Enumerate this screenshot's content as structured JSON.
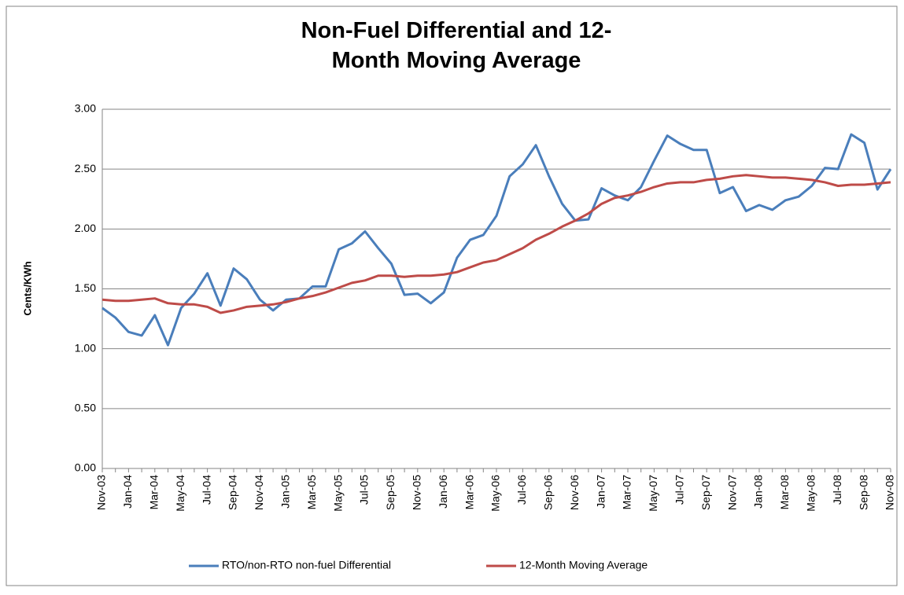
{
  "chart_data": {
    "type": "line",
    "title": "Non-Fuel Differential and 12-Month Moving Average",
    "y_label": "Cents/KWh",
    "categories": [
      "Nov-03",
      null,
      "Jan-04",
      null,
      "Mar-04",
      null,
      "May-04",
      null,
      "Jul-04",
      null,
      "Sep-04",
      null,
      "Nov-04",
      null,
      "Jan-05",
      null,
      "Mar-05",
      null,
      "May-05",
      null,
      "Jul-05",
      null,
      "Sep-05",
      null,
      "Nov-05",
      null,
      "Jan-06",
      null,
      "Mar-06",
      null,
      "May-06",
      null,
      "Jul-06",
      null,
      "Sep-06",
      null,
      "Nov-06",
      null,
      "Jan-07",
      null,
      "Mar-07",
      null,
      "May-07",
      null,
      "Jul-07",
      null,
      "Sep-07",
      null,
      "Nov-07",
      null,
      "Jan-08",
      null,
      "Mar-08",
      null,
      "May-08",
      null,
      "Jul-08",
      null,
      "Sep-08",
      null,
      "Nov-08"
    ],
    "series": [
      {
        "name": "RTO/non-RTO non-fuel Differential",
        "color": "#4a7ebb",
        "values": [
          1.34,
          1.26,
          1.14,
          1.11,
          1.28,
          1.03,
          1.34,
          1.46,
          1.63,
          1.36,
          1.67,
          1.58,
          1.41,
          1.32,
          1.41,
          1.42,
          1.52,
          1.52,
          1.83,
          1.88,
          1.98,
          1.84,
          1.71,
          1.45,
          1.46,
          1.38,
          1.47,
          1.76,
          1.91,
          1.95,
          2.11,
          2.44,
          2.54,
          2.7,
          2.44,
          2.21,
          2.07,
          2.08,
          2.34,
          2.28,
          2.24,
          2.35,
          2.57,
          2.78,
          2.71,
          2.66,
          2.66,
          2.3,
          2.35,
          2.15,
          2.2,
          2.16,
          2.24,
          2.27,
          2.36,
          2.51,
          2.5,
          2.79,
          2.72,
          2.33,
          2.5
        ]
      },
      {
        "name": "12-Month Moving Average",
        "color": "#be4b48",
        "values": [
          1.41,
          1.4,
          1.4,
          1.41,
          1.42,
          1.38,
          1.37,
          1.37,
          1.35,
          1.3,
          1.32,
          1.35,
          1.36,
          1.37,
          1.39,
          1.42,
          1.44,
          1.47,
          1.51,
          1.55,
          1.57,
          1.61,
          1.61,
          1.6,
          1.61,
          1.61,
          1.62,
          1.64,
          1.68,
          1.72,
          1.74,
          1.79,
          1.84,
          1.91,
          1.96,
          2.02,
          2.07,
          2.13,
          2.21,
          2.26,
          2.28,
          2.31,
          2.35,
          2.38,
          2.39,
          2.39,
          2.41,
          2.42,
          2.44,
          2.45,
          2.44,
          2.43,
          2.43,
          2.42,
          2.41,
          2.39,
          2.36,
          2.37,
          2.37,
          2.38,
          2.39
        ]
      }
    ],
    "ylim": [
      0,
      3
    ],
    "yticks": [
      {
        "value": 0,
        "label": "0.00"
      },
      {
        "value": 0.5,
        "label": "0.50"
      },
      {
        "value": 1,
        "label": "1.00"
      },
      {
        "value": 1.5,
        "label": "1.50"
      },
      {
        "value": 2,
        "label": "2.00"
      },
      {
        "value": 2.5,
        "label": "2.50"
      },
      {
        "value": 3,
        "label": "3.00"
      }
    ],
    "grid": true,
    "legend": "bottom"
  }
}
